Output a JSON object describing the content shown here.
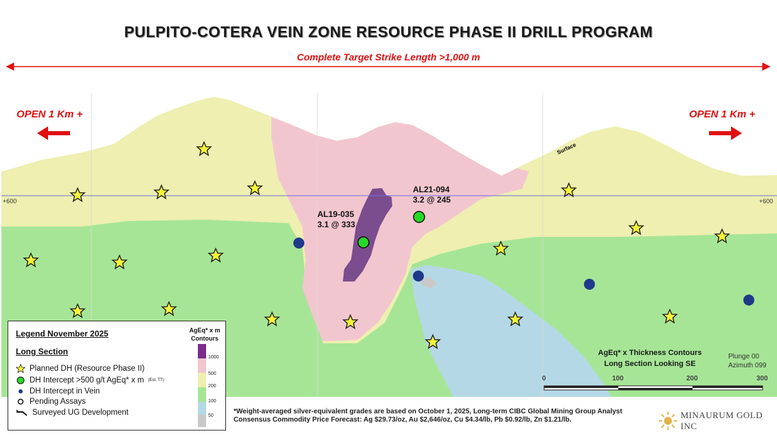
{
  "title": "PULPITO-COTERA VEIN ZONE RESOURCE PHASE II DRILL PROGRAM",
  "strike_label": "Complete Target Strike Length >1,000 m",
  "open_left": "OPEN  1 Km +",
  "open_right": "OPEN  1 Km +",
  "surface_label": "Surface",
  "level_left": "+600",
  "level_right": "+600",
  "intercepts": [
    {
      "hole": "AL19-035",
      "value": "3.1 @ 333"
    },
    {
      "hole": "AL21-094",
      "value": "3.2 @ 245"
    }
  ],
  "legend": {
    "title": "Legend November 2025",
    "section": "Long Section",
    "items": [
      {
        "icon": "star-icon",
        "label": "Planned DH (Resource Phase II)"
      },
      {
        "icon": "green-dot-icon",
        "label": "DH Intercept >500 g/t  AgEq* x m",
        "suffix": "(Est. TT)"
      },
      {
        "icon": "blue-dot-icon",
        "label": "DH Intercept in Vein"
      },
      {
        "icon": "open-circle-icon",
        "label": "Pending Assays"
      },
      {
        "icon": "ug-development-icon",
        "label": "Surveyed UG Development"
      }
    ],
    "contour_title_1": "AgEq* x m",
    "contour_title_2": "Contours",
    "contour_levels": [
      "1000",
      "500",
      "200",
      "100",
      "50"
    ],
    "contour_colors": [
      "#7b2d8e",
      "#f2c6cf",
      "#eeefb0",
      "#a6e596",
      "#b5d8e6",
      "#c9c9c9"
    ]
  },
  "contours_label_1": "AgEq* x Thickness Contours",
  "contours_label_2": "Long Section Looking SE",
  "plunge": "Plunge 00",
  "azimuth": "Azimuth 099",
  "scale": [
    "0",
    "100",
    "200",
    "300"
  ],
  "footnote_1": "*Weight-averaged silver-equivalent grades are based on October 1, 2025, Long-term CIBC Global Mining Group Analyst",
  "footnote_2": "Consensus Commodity Price Forecast: Ag $29.73/oz, Au $2,646/oz, Cu $4.34/lb, Pb $0.92/lb, Zn $1.21/lb.",
  "logo_text": "MINAURUM GOLD INC",
  "colors": {
    "accent_red": "#e01010",
    "level_line": "#6f6fd8",
    "star": "#f4f43a",
    "green_dot": "#27d827",
    "blue_dot": "#1f3a8a"
  }
}
